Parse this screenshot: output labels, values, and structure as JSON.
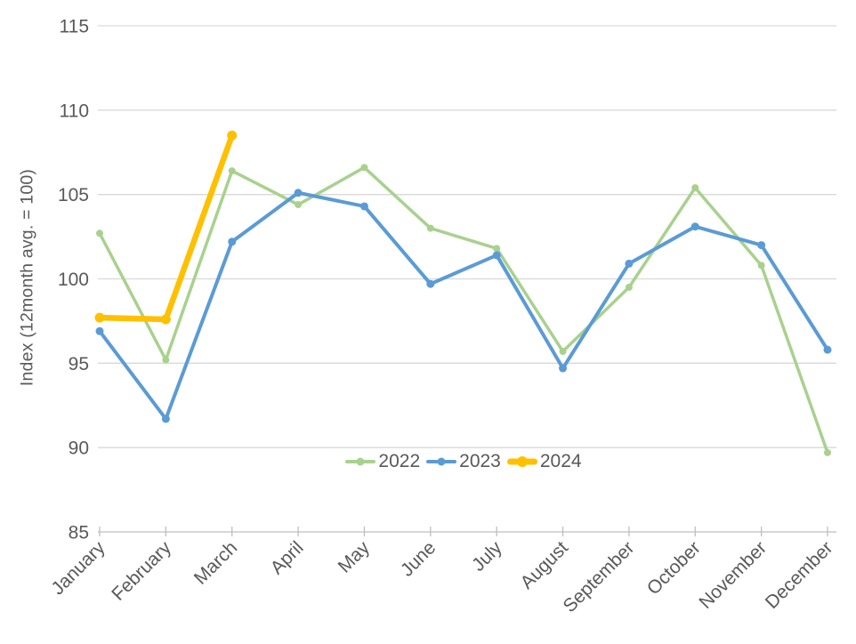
{
  "chart_data": {
    "type": "line",
    "ylabel": "Index (12month avg. = 100)",
    "xlabel": "",
    "ylim": [
      85,
      115
    ],
    "yticks": [
      85,
      90,
      95,
      100,
      105,
      110,
      115
    ],
    "grid": "horizontal",
    "legend_position": "bottom-center-inside",
    "categories": [
      "January",
      "February",
      "March",
      "April",
      "May",
      "June",
      "July",
      "August",
      "September",
      "October",
      "November",
      "December"
    ],
    "series": [
      {
        "name": "2022",
        "color": "#A9D18E",
        "line_width": 3.5,
        "marker_radius": 4,
        "values": [
          102.7,
          95.2,
          106.4,
          104.4,
          106.6,
          103.0,
          101.8,
          95.7,
          99.5,
          105.4,
          100.8,
          89.7
        ]
      },
      {
        "name": "2023",
        "color": "#5B9BD5",
        "line_width": 4,
        "marker_radius": 4.5,
        "values": [
          96.9,
          91.7,
          102.2,
          105.1,
          104.3,
          99.7,
          101.4,
          94.7,
          100.9,
          103.1,
          102.0,
          95.8
        ]
      },
      {
        "name": "2024",
        "color": "#FFC000",
        "line_width": 6.5,
        "marker_radius": 5.5,
        "values": [
          97.7,
          97.6,
          108.5
        ]
      }
    ],
    "colors": {
      "gridline": "#D9D9D9",
      "axis_line": "#BFBFBF",
      "tick_text": "#595959"
    }
  }
}
